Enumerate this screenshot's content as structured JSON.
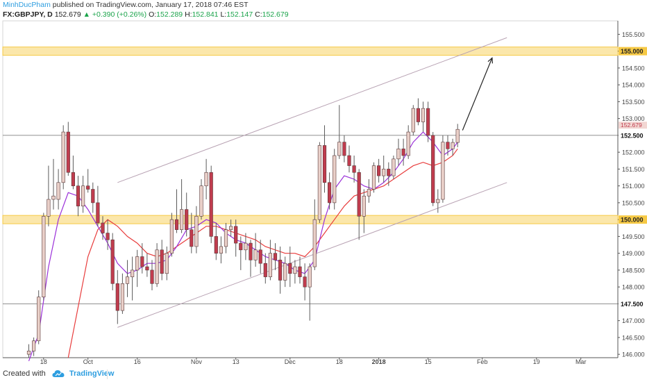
{
  "header": {
    "author": "MinhDucPham",
    "published_text": "published on TradingView.com, January 17, 2018 07:46 EST"
  },
  "legend": {
    "symbol": "FX:GBPJPY, D",
    "last": "152.679",
    "arrow": "▲",
    "change": "+0.390 (+0.26%)",
    "o_label": "O:",
    "o_value": "152.289",
    "h_label": "H:",
    "h_value": "152.841",
    "l_label": "L:",
    "l_value": "152.147",
    "c_label": "C:",
    "c_value": "152.679"
  },
  "footer": {
    "created_with": "Created with",
    "brand": "TradingView"
  },
  "colors": {
    "bull_body": "#e9cfc8",
    "bear_body": "#c03c4e",
    "wick": "#5a5a5a",
    "sma_fast": "#9b30d9",
    "sma_slow": "#e83c3c",
    "zone": "#f6c945",
    "channel": "#b8a2b3"
  },
  "chart_data": {
    "type": "candlestick",
    "symbol": "GBPJPY",
    "timeframe": "D",
    "ylim": [
      145.9,
      155.9
    ],
    "y_ticks": [
      "146.000",
      "146.500",
      "147.000",
      "147.500",
      "148.000",
      "148.500",
      "149.000",
      "149.500",
      "150.000",
      "150.500",
      "151.000",
      "151.500",
      "152.000",
      "152.500",
      "153.000",
      "153.500",
      "154.000",
      "154.500",
      "155.000",
      "155.500"
    ],
    "x_ticks": [
      {
        "label": "18",
        "bar": 3
      },
      {
        "label": "Oct",
        "bar": 12
      },
      {
        "label": "16",
        "bar": 22
      },
      {
        "label": "Nov",
        "bar": 34
      },
      {
        "label": "13",
        "bar": 42
      },
      {
        "label": "Dec",
        "bar": 53
      },
      {
        "label": "18",
        "bar": 63
      },
      {
        "label": "2018",
        "bar": 71
      },
      {
        "label": "15",
        "bar": 81
      },
      {
        "label": "Feb",
        "bar": 92
      },
      {
        "label": "19",
        "bar": 103
      },
      {
        "label": "Mar",
        "bar": 112
      }
    ],
    "candles": [
      {
        "o": 146.0,
        "h": 146.3,
        "l": 145.9,
        "c": 146.1
      },
      {
        "o": 146.1,
        "h": 146.5,
        "l": 145.95,
        "c": 146.4
      },
      {
        "o": 146.4,
        "h": 147.9,
        "l": 146.3,
        "c": 147.7
      },
      {
        "o": 147.7,
        "h": 150.2,
        "l": 147.6,
        "c": 150.1
      },
      {
        "o": 150.1,
        "h": 151.6,
        "l": 149.8,
        "c": 150.6
      },
      {
        "o": 150.6,
        "h": 151.8,
        "l": 150.3,
        "c": 150.7
      },
      {
        "o": 150.6,
        "h": 151.5,
        "l": 150.3,
        "c": 151.1
      },
      {
        "o": 151.1,
        "h": 152.8,
        "l": 150.9,
        "c": 152.6
      },
      {
        "o": 152.6,
        "h": 152.9,
        "l": 151.3,
        "c": 151.4
      },
      {
        "o": 151.4,
        "h": 151.9,
        "l": 150.9,
        "c": 151.0
      },
      {
        "o": 151.0,
        "h": 151.3,
        "l": 150.1,
        "c": 150.4
      },
      {
        "o": 150.4,
        "h": 151.3,
        "l": 150.2,
        "c": 151.0
      },
      {
        "o": 151.0,
        "h": 151.5,
        "l": 150.8,
        "c": 150.9
      },
      {
        "o": 150.9,
        "h": 151.1,
        "l": 150.2,
        "c": 150.5
      },
      {
        "o": 150.5,
        "h": 151.0,
        "l": 149.8,
        "c": 149.9
      },
      {
        "o": 149.9,
        "h": 150.1,
        "l": 149.4,
        "c": 149.6
      },
      {
        "o": 149.6,
        "h": 150.0,
        "l": 149.1,
        "c": 149.4
      },
      {
        "o": 149.4,
        "h": 149.6,
        "l": 147.9,
        "c": 148.1
      },
      {
        "o": 148.1,
        "h": 148.5,
        "l": 146.9,
        "c": 147.3
      },
      {
        "o": 147.3,
        "h": 148.4,
        "l": 147.2,
        "c": 148.1
      },
      {
        "o": 148.1,
        "h": 148.8,
        "l": 147.7,
        "c": 148.3
      },
      {
        "o": 148.3,
        "h": 148.9,
        "l": 147.6,
        "c": 148.5
      },
      {
        "o": 148.5,
        "h": 149.1,
        "l": 148.0,
        "c": 148.9
      },
      {
        "o": 148.9,
        "h": 149.3,
        "l": 148.4,
        "c": 148.6
      },
      {
        "o": 148.6,
        "h": 149.0,
        "l": 148.3,
        "c": 148.5
      },
      {
        "o": 148.5,
        "h": 148.8,
        "l": 147.9,
        "c": 148.1
      },
      {
        "o": 148.1,
        "h": 149.3,
        "l": 148.0,
        "c": 149.1
      },
      {
        "o": 149.1,
        "h": 149.4,
        "l": 148.2,
        "c": 148.4
      },
      {
        "o": 148.4,
        "h": 149.2,
        "l": 148.2,
        "c": 149.0
      },
      {
        "o": 149.0,
        "h": 150.2,
        "l": 148.9,
        "c": 150.0
      },
      {
        "o": 150.0,
        "h": 150.9,
        "l": 149.6,
        "c": 149.7
      },
      {
        "o": 149.7,
        "h": 151.2,
        "l": 149.6,
        "c": 150.3
      },
      {
        "o": 150.3,
        "h": 150.8,
        "l": 149.5,
        "c": 149.7
      },
      {
        "o": 149.7,
        "h": 150.2,
        "l": 149.0,
        "c": 149.2
      },
      {
        "o": 149.2,
        "h": 150.4,
        "l": 149.0,
        "c": 150.1
      },
      {
        "o": 150.1,
        "h": 151.2,
        "l": 150.0,
        "c": 151.0
      },
      {
        "o": 151.0,
        "h": 151.8,
        "l": 150.6,
        "c": 151.4
      },
      {
        "o": 151.4,
        "h": 151.6,
        "l": 149.3,
        "c": 149.5
      },
      {
        "o": 149.5,
        "h": 149.9,
        "l": 148.8,
        "c": 149.0
      },
      {
        "o": 149.0,
        "h": 149.5,
        "l": 148.7,
        "c": 149.2
      },
      {
        "o": 149.2,
        "h": 149.9,
        "l": 149.0,
        "c": 149.7
      },
      {
        "o": 149.7,
        "h": 150.0,
        "l": 149.5,
        "c": 149.8
      },
      {
        "o": 149.8,
        "h": 150.0,
        "l": 148.9,
        "c": 149.3
      },
      {
        "o": 149.3,
        "h": 149.5,
        "l": 148.5,
        "c": 149.1
      },
      {
        "o": 149.1,
        "h": 149.6,
        "l": 148.8,
        "c": 149.3
      },
      {
        "o": 149.3,
        "h": 149.4,
        "l": 148.3,
        "c": 148.8
      },
      {
        "o": 148.8,
        "h": 149.6,
        "l": 148.6,
        "c": 149.1
      },
      {
        "o": 149.1,
        "h": 149.4,
        "l": 148.4,
        "c": 148.7
      },
      {
        "o": 148.7,
        "h": 149.0,
        "l": 148.1,
        "c": 148.3
      },
      {
        "o": 148.3,
        "h": 149.4,
        "l": 148.2,
        "c": 149.0
      },
      {
        "o": 149.0,
        "h": 149.3,
        "l": 148.5,
        "c": 148.8
      },
      {
        "o": 148.8,
        "h": 149.2,
        "l": 147.8,
        "c": 148.2
      },
      {
        "o": 148.2,
        "h": 148.9,
        "l": 148.0,
        "c": 148.7
      },
      {
        "o": 148.7,
        "h": 149.2,
        "l": 148.0,
        "c": 148.4
      },
      {
        "o": 148.4,
        "h": 148.8,
        "l": 148.1,
        "c": 148.6
      },
      {
        "o": 148.6,
        "h": 148.9,
        "l": 148.1,
        "c": 148.3
      },
      {
        "o": 148.3,
        "h": 148.7,
        "l": 147.6,
        "c": 148.0
      },
      {
        "o": 148.0,
        "h": 148.7,
        "l": 147.0,
        "c": 148.6
      },
      {
        "o": 148.6,
        "h": 150.6,
        "l": 148.5,
        "c": 150.0
      },
      {
        "o": 150.0,
        "h": 152.3,
        "l": 149.9,
        "c": 152.2
      },
      {
        "o": 152.2,
        "h": 152.8,
        "l": 150.8,
        "c": 151.1
      },
      {
        "o": 151.1,
        "h": 151.4,
        "l": 150.3,
        "c": 150.5
      },
      {
        "o": 150.5,
        "h": 152.1,
        "l": 150.3,
        "c": 151.9
      },
      {
        "o": 151.9,
        "h": 153.4,
        "l": 151.8,
        "c": 152.3
      },
      {
        "o": 152.3,
        "h": 152.5,
        "l": 151.7,
        "c": 151.9
      },
      {
        "o": 151.9,
        "h": 152.2,
        "l": 151.4,
        "c": 151.6
      },
      {
        "o": 151.6,
        "h": 151.9,
        "l": 151.1,
        "c": 151.4
      },
      {
        "o": 151.4,
        "h": 151.5,
        "l": 149.4,
        "c": 150.1
      },
      {
        "o": 150.1,
        "h": 150.9,
        "l": 149.6,
        "c": 150.7
      },
      {
        "o": 150.7,
        "h": 151.2,
        "l": 150.5,
        "c": 150.9
      },
      {
        "o": 150.9,
        "h": 151.7,
        "l": 150.8,
        "c": 151.6
      },
      {
        "o": 151.6,
        "h": 151.8,
        "l": 151.1,
        "c": 151.3
      },
      {
        "o": 151.3,
        "h": 151.9,
        "l": 151.1,
        "c": 151.5
      },
      {
        "o": 151.5,
        "h": 151.7,
        "l": 151.0,
        "c": 151.3
      },
      {
        "o": 151.3,
        "h": 151.9,
        "l": 151.2,
        "c": 151.8
      },
      {
        "o": 151.8,
        "h": 152.4,
        "l": 151.6,
        "c": 152.1
      },
      {
        "o": 152.1,
        "h": 152.4,
        "l": 151.6,
        "c": 151.9
      },
      {
        "o": 151.9,
        "h": 152.8,
        "l": 151.8,
        "c": 152.6
      },
      {
        "o": 152.6,
        "h": 153.4,
        "l": 152.5,
        "c": 153.3
      },
      {
        "o": 153.3,
        "h": 153.6,
        "l": 152.8,
        "c": 152.9
      },
      {
        "o": 152.9,
        "h": 153.5,
        "l": 152.6,
        "c": 153.3
      },
      {
        "o": 153.3,
        "h": 153.5,
        "l": 152.3,
        "c": 152.5
      },
      {
        "o": 152.5,
        "h": 152.6,
        "l": 150.4,
        "c": 150.5
      },
      {
        "o": 150.5,
        "h": 150.9,
        "l": 150.2,
        "c": 150.6
      },
      {
        "o": 150.6,
        "h": 152.5,
        "l": 150.5,
        "c": 152.3
      },
      {
        "o": 152.3,
        "h": 152.5,
        "l": 151.9,
        "c": 152.1
      },
      {
        "o": 152.1,
        "h": 152.4,
        "l": 151.9,
        "c": 152.29
      },
      {
        "o": 152.289,
        "h": 152.841,
        "l": 152.147,
        "c": 152.679
      }
    ],
    "sma_fast": [
      [
        0,
        145.8
      ],
      [
        2,
        146.6
      ],
      [
        4,
        148.6
      ],
      [
        6,
        150.0
      ],
      [
        8,
        150.8
      ],
      [
        10,
        150.7
      ],
      [
        12,
        150.3
      ],
      [
        14,
        149.8
      ],
      [
        16,
        149.3
      ],
      [
        18,
        148.7
      ],
      [
        20,
        148.4
      ],
      [
        22,
        148.5
      ],
      [
        24,
        148.7
      ],
      [
        26,
        148.7
      ],
      [
        28,
        148.8
      ],
      [
        30,
        149.2
      ],
      [
        32,
        149.7
      ],
      [
        34,
        149.8
      ],
      [
        36,
        150.0
      ],
      [
        38,
        149.9
      ],
      [
        40,
        149.6
      ],
      [
        42,
        149.4
      ],
      [
        44,
        149.3
      ],
      [
        46,
        149.1
      ],
      [
        48,
        148.9
      ],
      [
        50,
        148.8
      ],
      [
        52,
        148.7
      ],
      [
        54,
        148.5
      ],
      [
        56,
        148.4
      ],
      [
        58,
        148.8
      ],
      [
        60,
        150.0
      ],
      [
        62,
        150.9
      ],
      [
        64,
        151.3
      ],
      [
        66,
        151.2
      ],
      [
        68,
        151.0
      ],
      [
        70,
        150.9
      ],
      [
        72,
        151.1
      ],
      [
        74,
        151.4
      ],
      [
        76,
        151.8
      ],
      [
        78,
        152.3
      ],
      [
        80,
        152.6
      ],
      [
        82,
        152.3
      ],
      [
        84,
        151.9
      ],
      [
        86,
        152.1
      ],
      [
        87,
        152.3
      ]
    ],
    "sma_slow": [
      [
        8,
        145.9
      ],
      [
        12,
        148.9
      ],
      [
        14,
        149.7
      ],
      [
        16,
        150.0
      ],
      [
        18,
        149.8
      ],
      [
        20,
        149.5
      ],
      [
        22,
        149.3
      ],
      [
        24,
        149.0
      ],
      [
        26,
        148.9
      ],
      [
        28,
        149.0
      ],
      [
        30,
        149.2
      ],
      [
        32,
        149.4
      ],
      [
        34,
        149.6
      ],
      [
        36,
        149.8
      ],
      [
        38,
        149.8
      ],
      [
        40,
        149.7
      ],
      [
        42,
        149.6
      ],
      [
        44,
        149.5
      ],
      [
        46,
        149.4
      ],
      [
        48,
        149.2
      ],
      [
        50,
        149.1
      ],
      [
        52,
        149.0
      ],
      [
        54,
        149.0
      ],
      [
        56,
        148.9
      ],
      [
        58,
        149.2
      ],
      [
        60,
        149.6
      ],
      [
        62,
        150.0
      ],
      [
        64,
        150.4
      ],
      [
        66,
        150.7
      ],
      [
        68,
        150.8
      ],
      [
        70,
        150.9
      ],
      [
        72,
        151.0
      ],
      [
        74,
        151.2
      ],
      [
        76,
        151.4
      ],
      [
        78,
        151.6
      ],
      [
        80,
        151.7
      ],
      [
        82,
        151.6
      ],
      [
        84,
        151.7
      ],
      [
        86,
        151.9
      ],
      [
        87,
        152.1
      ]
    ],
    "horizontal_lines": [
      {
        "price": 152.5,
        "label": "152.500",
        "kind": "line"
      },
      {
        "price": 147.5,
        "label": "147.500",
        "kind": "line"
      },
      {
        "price": 155.0,
        "label": "155.000",
        "kind": "zone"
      },
      {
        "price": 150.0,
        "label": "150.000",
        "kind": "zone"
      }
    ],
    "channel": {
      "upper": [
        [
          18,
          151.1
        ],
        [
          97,
          155.4
        ]
      ],
      "lower": [
        [
          18,
          146.8
        ],
        [
          97,
          151.1
        ]
      ]
    },
    "arrow": {
      "from": [
        88,
        152.65
      ],
      "to": [
        94,
        154.8
      ]
    },
    "last_price_label": "152.679"
  }
}
